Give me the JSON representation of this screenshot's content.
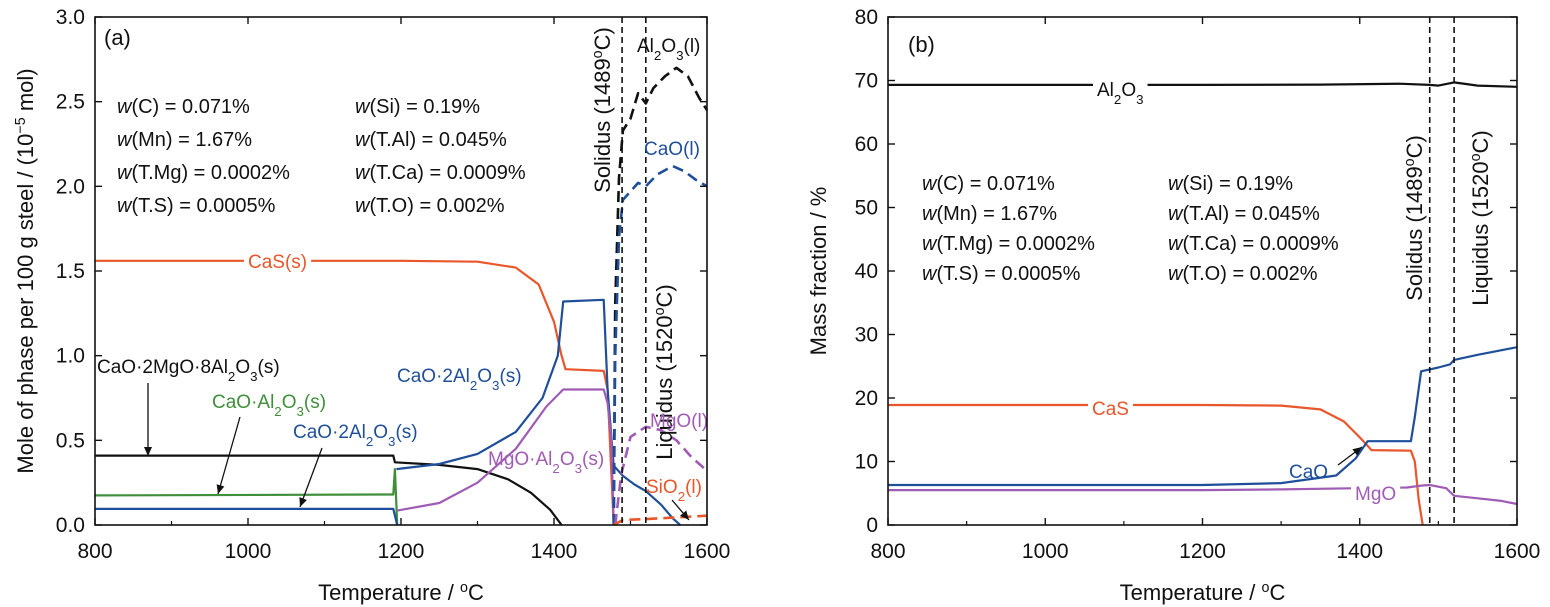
{
  "chart_data": [
    {
      "panel": "(a)",
      "type": "line",
      "xlabel": "Temperature / ",
      "xlabel_unit": "oC",
      "ylabel": "Mole of phase per 100 g steel / (10",
      "ylabel_exp": "−5",
      "ylabel_tail": " mol)",
      "xlim": [
        800,
        1600
      ],
      "ylim": [
        0,
        3.0
      ],
      "xticks": [
        800,
        1000,
        1200,
        1400,
        1600
      ],
      "xtick_labels": [
        "800",
        "1000",
        "1200",
        "1400",
        "1600"
      ],
      "yticks": [
        0,
        0.5,
        1.0,
        1.5,
        2.0,
        2.5,
        3.0
      ],
      "ytick_labels": [
        "0.0",
        "0.5",
        "1.0",
        "1.5",
        "2.0",
        "2.5",
        "3.0"
      ],
      "composition": [
        [
          "w",
          "(C) = 0.071%"
        ],
        [
          "w",
          "(Si) = 0.19%"
        ],
        [
          "w",
          "(Mn) = 1.67%"
        ],
        [
          "w",
          "(T.Al) = 0.045%"
        ],
        [
          "w",
          "(T.Mg) = 0.0002%"
        ],
        [
          "w",
          "(T.Ca) = 0.0009%"
        ],
        [
          "w",
          "(T.S) = 0.0005%"
        ],
        [
          "w",
          "(T.O) = 0.002%"
        ]
      ],
      "vlines": [
        {
          "x": 1489,
          "label": "Solidus (1489",
          "deg": "o",
          "unit": "C)"
        },
        {
          "x": 1520,
          "label": "Liquidus (1520",
          "deg": "o",
          "unit": "C)"
        }
      ],
      "series": [
        {
          "name": "CaS(s)",
          "color": "#e8562a",
          "dash": false,
          "points": [
            [
              800,
              1.56
            ],
            [
              1200,
              1.56
            ],
            [
              1300,
              1.555
            ],
            [
              1350,
              1.52
            ],
            [
              1380,
              1.42
            ],
            [
              1400,
              1.2
            ],
            [
              1410,
              1.0
            ],
            [
              1415,
              0.92
            ],
            [
              1465,
              0.91
            ],
            [
              1470,
              0.8
            ],
            [
              1475,
              0.3
            ],
            [
              1478,
              0.0
            ]
          ]
        },
        {
          "name": "CaO·2MgO·8Al2O3(s)",
          "color": "#111111",
          "dash": false,
          "points": [
            [
              800,
              0.41
            ],
            [
              1190,
              0.41
            ],
            [
              1192,
              0.37
            ],
            [
              1250,
              0.355
            ],
            [
              1300,
              0.33
            ],
            [
              1340,
              0.27
            ],
            [
              1370,
              0.19
            ],
            [
              1395,
              0.09
            ],
            [
              1410,
              0.0
            ]
          ]
        },
        {
          "name": "CaO·Al2O3(s)",
          "color": "#3f8f3a",
          "dash": false,
          "points": [
            [
              800,
              0.175
            ],
            [
              1190,
              0.18
            ],
            [
              1192,
              0.33
            ],
            [
              1195,
              0.0
            ]
          ]
        },
        {
          "name": "CaO·2Al2O3(s) low",
          "color": "#1f4f9a",
          "dash": false,
          "points": [
            [
              800,
              0.095
            ],
            [
              1190,
              0.095
            ],
            [
              1195,
              0.0
            ]
          ]
        },
        {
          "name": "CaO·2Al2O3(s)",
          "color": "#1f4f9a",
          "dash": false,
          "points": [
            [
              1194,
              0.33
            ],
            [
              1250,
              0.36
            ],
            [
              1300,
              0.42
            ],
            [
              1350,
              0.55
            ],
            [
              1385,
              0.75
            ],
            [
              1405,
              1.0
            ],
            [
              1412,
              1.32
            ],
            [
              1465,
              1.33
            ],
            [
              1470,
              0.8
            ],
            [
              1478,
              0.35
            ],
            [
              1490,
              0.29
            ],
            [
              1505,
              0.24
            ],
            [
              1520,
              0.2
            ],
            [
              1540,
              0.12
            ],
            [
              1555,
              0.04
            ],
            [
              1565,
              0.0
            ]
          ]
        },
        {
          "name": "MgO·Al2O3(s)",
          "color": "#a05cb5",
          "dash": false,
          "points": [
            [
              1195,
              0.085
            ],
            [
              1250,
              0.13
            ],
            [
              1300,
              0.25
            ],
            [
              1350,
              0.45
            ],
            [
              1390,
              0.7
            ],
            [
              1412,
              0.8
            ],
            [
              1465,
              0.8
            ],
            [
              1470,
              0.72
            ],
            [
              1475,
              0.5
            ],
            [
              1478,
              0.0
            ]
          ]
        },
        {
          "name": "Al2O3(l)",
          "color": "#111111",
          "dash": true,
          "points": [
            [
              1478,
              0.0
            ],
            [
              1480,
              1.3
            ],
            [
              1485,
              2.05
            ],
            [
              1490,
              2.33
            ],
            [
              1500,
              2.4
            ],
            [
              1510,
              2.55
            ],
            [
              1520,
              2.49
            ],
            [
              1530,
              2.58
            ],
            [
              1545,
              2.65
            ],
            [
              1560,
              2.7
            ],
            [
              1575,
              2.65
            ],
            [
              1590,
              2.52
            ],
            [
              1600,
              2.45
            ]
          ]
        },
        {
          "name": "CaO(l)",
          "color": "#1f4f9a",
          "dash": true,
          "points": [
            [
              1478,
              0.0
            ],
            [
              1480,
              1.0
            ],
            [
              1485,
              1.7
            ],
            [
              1490,
              1.92
            ],
            [
              1500,
              1.97
            ],
            [
              1510,
              2.02
            ],
            [
              1520,
              2.0
            ],
            [
              1535,
              2.07
            ],
            [
              1555,
              2.12
            ],
            [
              1570,
              2.09
            ],
            [
              1585,
              2.04
            ],
            [
              1600,
              2.0
            ]
          ]
        },
        {
          "name": "MgO(l)",
          "color": "#a05cb5",
          "dash": true,
          "points": [
            [
              1480,
              0.0
            ],
            [
              1488,
              0.3
            ],
            [
              1500,
              0.52
            ],
            [
              1520,
              0.58
            ],
            [
              1540,
              0.56
            ],
            [
              1560,
              0.5
            ],
            [
              1580,
              0.4
            ],
            [
              1600,
              0.32
            ]
          ]
        },
        {
          "name": "SiO2(l)",
          "color": "#e8562a",
          "dash": true,
          "points": [
            [
              1478,
              0.0
            ],
            [
              1490,
              0.03
            ],
            [
              1520,
              0.035
            ],
            [
              1560,
              0.045
            ],
            [
              1600,
              0.055
            ]
          ]
        }
      ],
      "annotations": [
        {
          "parts": [
            "CaS(s)"
          ],
          "color": "#e8562a"
        },
        {
          "parts": [
            "CaO·2MgO·8Al",
            "2",
            "O",
            "3",
            "(s)"
          ],
          "color": "#111111"
        },
        {
          "parts": [
            "CaO·Al",
            "2",
            "O",
            "3",
            "(s)"
          ],
          "color": "#3f8f3a"
        },
        {
          "parts": [
            "CaO·2Al",
            "2",
            "O",
            "3",
            "(s)"
          ],
          "color": "#1f4f9a"
        },
        {
          "parts": [
            "CaO·2Al",
            "2",
            "O",
            "3",
            "(s)"
          ],
          "color": "#1f4f9a"
        },
        {
          "parts": [
            "MgO·Al",
            "2",
            "O",
            "3",
            "(s)"
          ],
          "color": "#a05cb5"
        },
        {
          "parts": [
            "Al",
            "2",
            "O",
            "3",
            "(l)"
          ],
          "color": "#111111"
        },
        {
          "parts": [
            "CaO(l)"
          ],
          "color": "#1f4f9a"
        },
        {
          "parts": [
            "MgO(l)"
          ],
          "color": "#a05cb5"
        },
        {
          "parts": [
            "SiO",
            "2",
            "(l)"
          ],
          "color": "#e8562a"
        }
      ]
    },
    {
      "panel": "(b)",
      "type": "line",
      "xlabel": "Temperature / ",
      "xlabel_unit": "oC",
      "ylabel": "Mass fraction / %",
      "xlim": [
        800,
        1600
      ],
      "ylim": [
        0,
        80
      ],
      "xticks": [
        800,
        1000,
        1200,
        1400,
        1600
      ],
      "xtick_labels": [
        "800",
        "1000",
        "1200",
        "1400",
        "1600"
      ],
      "yticks": [
        0,
        10,
        20,
        30,
        40,
        50,
        60,
        70,
        80
      ],
      "ytick_labels": [
        "0",
        "10",
        "20",
        "30",
        "40",
        "50",
        "60",
        "70",
        "80"
      ],
      "composition": [
        [
          "w",
          "(C) = 0.071%"
        ],
        [
          "w",
          "(Si) = 0.19%"
        ],
        [
          "w",
          "(Mn) = 1.67%"
        ],
        [
          "w",
          "(T.Al) = 0.045%"
        ],
        [
          "w",
          "(T.Mg) = 0.0002%"
        ],
        [
          "w",
          "(T.Ca) = 0.0009%"
        ],
        [
          "w",
          "(T.S) = 0.0005%"
        ],
        [
          "w",
          "(T.O) = 0.002%"
        ]
      ],
      "vlines": [
        {
          "x": 1489,
          "label": "Solidus (1489",
          "deg": "o",
          "unit": "C)"
        },
        {
          "x": 1520,
          "label": "Liquidus (1520",
          "deg": "o",
          "unit": "C)"
        }
      ],
      "series": [
        {
          "name": "Al2O3",
          "color": "#111111",
          "dash": false,
          "points": [
            [
              800,
              69.3
            ],
            [
              1000,
              69.3
            ],
            [
              1200,
              69.3
            ],
            [
              1350,
              69.35
            ],
            [
              1450,
              69.5
            ],
            [
              1489,
              69.3
            ],
            [
              1500,
              69.2
            ],
            [
              1520,
              69.7
            ],
            [
              1550,
              69.2
            ],
            [
              1600,
              69.0
            ]
          ]
        },
        {
          "name": "CaS",
          "color": "#e8562a",
          "dash": false,
          "points": [
            [
              800,
              18.9
            ],
            [
              1200,
              18.9
            ],
            [
              1300,
              18.8
            ],
            [
              1350,
              18.2
            ],
            [
              1380,
              16.3
            ],
            [
              1400,
              13.8
            ],
            [
              1415,
              11.8
            ],
            [
              1465,
              11.7
            ],
            [
              1470,
              10.0
            ],
            [
              1475,
              4.0
            ],
            [
              1480,
              0.0
            ]
          ]
        },
        {
          "name": "CaO",
          "color": "#1f4f9a",
          "dash": false,
          "points": [
            [
              800,
              6.3
            ],
            [
              1200,
              6.3
            ],
            [
              1300,
              6.6
            ],
            [
              1370,
              7.8
            ],
            [
              1395,
              10.5
            ],
            [
              1410,
              13.2
            ],
            [
              1465,
              13.2
            ],
            [
              1470,
              17.0
            ],
            [
              1478,
              24.2
            ],
            [
              1489,
              24.5
            ],
            [
              1500,
              24.8
            ],
            [
              1515,
              25.3
            ],
            [
              1520,
              26.0
            ],
            [
              1550,
              26.8
            ],
            [
              1600,
              28.0
            ]
          ]
        },
        {
          "name": "MgO",
          "color": "#a05cb5",
          "dash": false,
          "points": [
            [
              800,
              5.5
            ],
            [
              1200,
              5.5
            ],
            [
              1300,
              5.6
            ],
            [
              1400,
              5.8
            ],
            [
              1460,
              5.9
            ],
            [
              1478,
              6.2
            ],
            [
              1489,
              6.3
            ],
            [
              1510,
              5.8
            ],
            [
              1520,
              4.6
            ],
            [
              1550,
              4.2
            ],
            [
              1580,
              3.8
            ],
            [
              1600,
              3.3
            ]
          ]
        }
      ],
      "annotations": [
        {
          "parts": [
            "Al",
            "2",
            "O",
            "3"
          ],
          "color": "#111111"
        },
        {
          "parts": [
            "CaS"
          ],
          "color": "#e8562a"
        },
        {
          "parts": [
            "CaO"
          ],
          "color": "#1f4f9a"
        },
        {
          "parts": [
            "MgO"
          ],
          "color": "#a05cb5"
        }
      ]
    }
  ]
}
